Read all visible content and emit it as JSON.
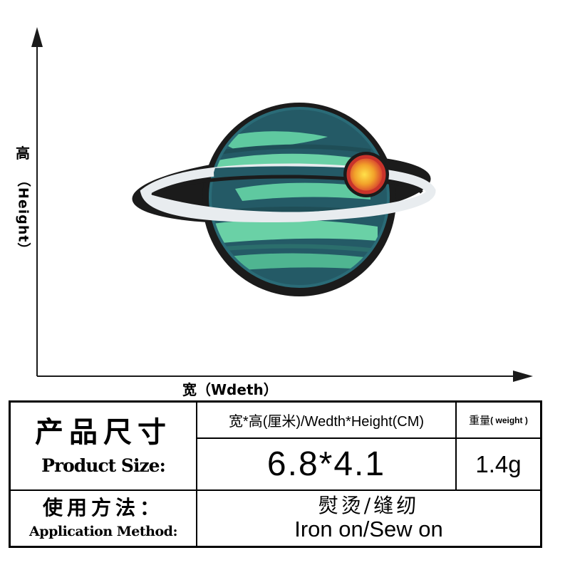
{
  "axis": {
    "height_cn": "高",
    "height_en": "（Height）",
    "width_label": "宽（Wdeth）"
  },
  "table": {
    "product_size_cn": "产品尺寸",
    "product_size_en": "Product Size:",
    "size_header": "宽*高(厘米)/Wedth*Height(CM)",
    "weight_header_cn": "重量",
    "weight_header_en": "( weight )",
    "size_value": "6.8*4.1",
    "weight_value": "1.4g",
    "method_cn": "使用方法：",
    "method_en": "Application Method:",
    "method_value_cn": "熨烫/缝纫",
    "method_value_en": "Iron on/Sew on"
  },
  "colors": {
    "patch_border": "#1b1b1b",
    "planet_teal_dark": "#245a66",
    "planet_mint": "#5fc9a0",
    "ring": "#e8ecef",
    "moon_red": "#c8332b",
    "moon_orange": "#f2a12a"
  }
}
